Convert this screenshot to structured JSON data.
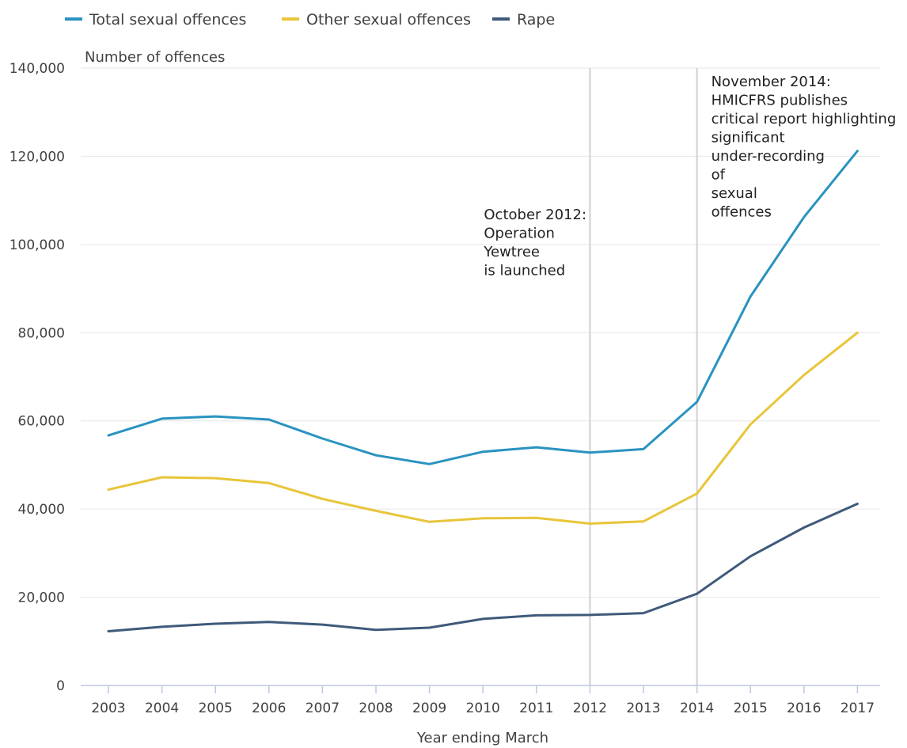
{
  "chart_data": {
    "type": "line",
    "ylabel": "Number of offences",
    "xlabel": "Year ending March",
    "categories": [
      "2003",
      "2004",
      "2005",
      "2006",
      "2007",
      "2008",
      "2009",
      "2010",
      "2011",
      "2012",
      "2013",
      "2014",
      "2015",
      "2016",
      "2017"
    ],
    "series": [
      {
        "name": "Total sexual offences",
        "color": "#2a93c0",
        "values": [
          56700,
          60500,
          61000,
          60300,
          56000,
          52200,
          50200,
          53000,
          54000,
          52800,
          53600,
          64300,
          88200,
          106200,
          121200
        ]
      },
      {
        "name": "Other sexual offences",
        "color": "#e8c53a",
        "values": [
          44400,
          47200,
          47000,
          45900,
          42300,
          39600,
          37100,
          37900,
          38000,
          36700,
          37200,
          43500,
          59200,
          70400,
          80000
        ]
      },
      {
        "name": "Rape",
        "color": "#3f5a7a",
        "values": [
          12300,
          13300,
          14000,
          14400,
          13800,
          12600,
          13100,
          15100,
          15900,
          16000,
          16400,
          20800,
          29300,
          35800,
          41200
        ]
      }
    ],
    "ylim": [
      0,
      140000
    ],
    "yticks": [
      0,
      20000,
      40000,
      60000,
      80000,
      100000,
      120000,
      140000
    ],
    "ytick_labels": [
      "0",
      "20,000",
      "40,000",
      "60,000",
      "80,000",
      "100,000",
      "120,000",
      "140,000"
    ],
    "grid": true,
    "legend_position": "top-left",
    "annotations": [
      {
        "x": "2012",
        "lines": [
          "October 2012:",
          "Operation",
          "Yewtree",
          "is launched"
        ]
      },
      {
        "x": "2014",
        "lines": [
          "November 2014:",
          "HMICFRS publishes",
          "critical report highlighting",
          "significant",
          "under-recording",
          "of",
          "sexual",
          "offences"
        ]
      }
    ]
  }
}
